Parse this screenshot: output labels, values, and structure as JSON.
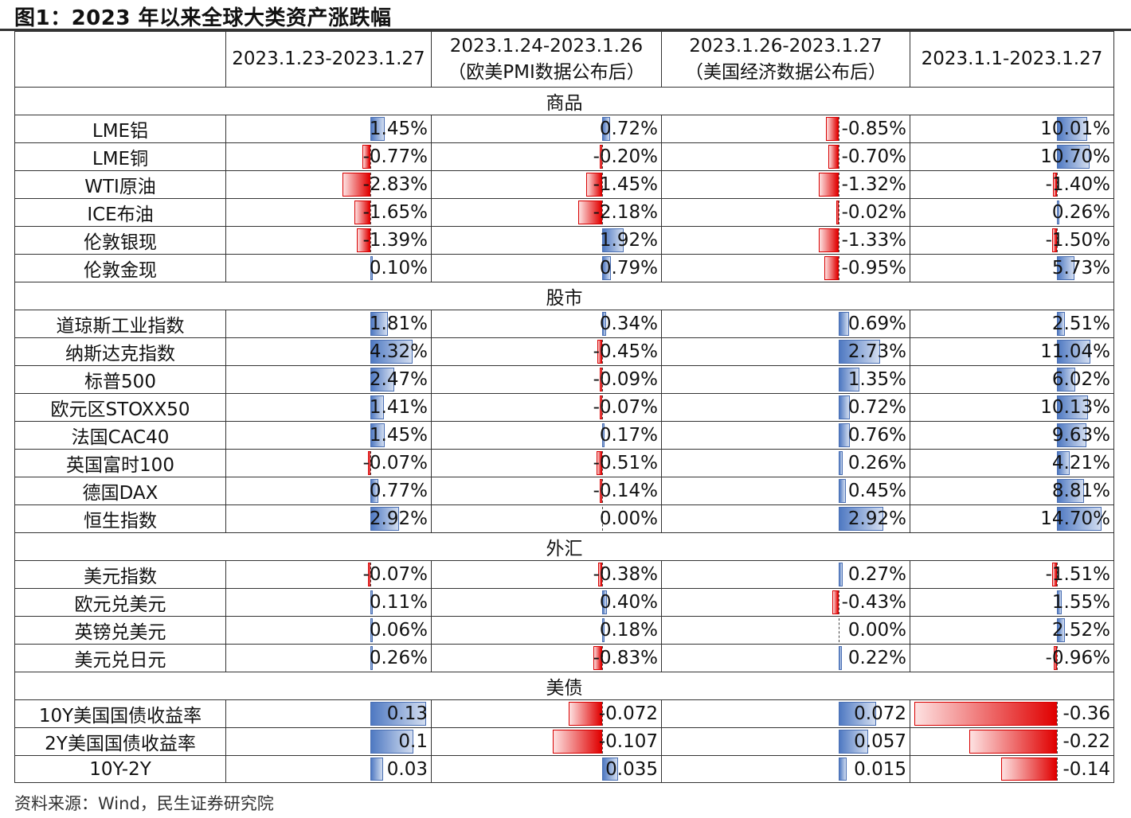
{
  "title": "图1：2023 年以来全球大类资产涨跌幅",
  "source": "资料来源：Wind，民生证券研究院",
  "colors": {
    "positive_bar": "#4f79c2",
    "negative_bar": "#e00000"
  },
  "columns": [
    {
      "line1": "2023.1.23-2023.1.27",
      "line2": ""
    },
    {
      "line1": "2023.1.24-2023.1.26",
      "line2": "（欧美PMI数据公布后）"
    },
    {
      "line1": "2023.1.26-2023.1.27",
      "line2": "（美国经济数据公布后）"
    },
    {
      "line1": "2023.1.1-2023.1.27",
      "line2": ""
    }
  ],
  "sections": [
    {
      "name": "商品",
      "rows": [
        {
          "label": "LME铝",
          "values": [
            1.45,
            0.72,
            -0.85,
            10.01
          ],
          "display": [
            "1.45%",
            "0.72%",
            "-0.85%",
            "10.01%"
          ]
        },
        {
          "label": "LME铜",
          "values": [
            -0.77,
            -0.2,
            -0.7,
            10.7
          ],
          "display": [
            "-0.77%",
            "-0.20%",
            "-0.70%",
            "10.70%"
          ]
        },
        {
          "label": "WTI原油",
          "values": [
            -2.83,
            -1.45,
            -1.32,
            -1.4
          ],
          "display": [
            "-2.83%",
            "-1.45%",
            "-1.32%",
            "-1.40%"
          ]
        },
        {
          "label": "ICE布油",
          "values": [
            -1.65,
            -2.18,
            -0.02,
            0.26
          ],
          "display": [
            "-1.65%",
            "-2.18%",
            "-0.02%",
            "0.26%"
          ]
        },
        {
          "label": "伦敦银现",
          "values": [
            -1.39,
            1.92,
            -1.33,
            -1.5
          ],
          "display": [
            "-1.39%",
            "1.92%",
            "-1.33%",
            "-1.50%"
          ]
        },
        {
          "label": "伦敦金现",
          "values": [
            0.1,
            0.79,
            -0.95,
            5.73
          ],
          "display": [
            "0.10%",
            "0.79%",
            "-0.95%",
            "5.73%"
          ]
        }
      ]
    },
    {
      "name": "股市",
      "rows": [
        {
          "label": "道琼斯工业指数",
          "values": [
            1.81,
            0.34,
            0.69,
            2.51
          ],
          "display": [
            "1.81%",
            "0.34%",
            "0.69%",
            "2.51%"
          ]
        },
        {
          "label": "纳斯达克指数",
          "values": [
            4.32,
            -0.45,
            2.73,
            11.04
          ],
          "display": [
            "4.32%",
            "-0.45%",
            "2.73%",
            "11.04%"
          ]
        },
        {
          "label": "标普500",
          "values": [
            2.47,
            -0.09,
            1.35,
            6.02
          ],
          "display": [
            "2.47%",
            "-0.09%",
            "1.35%",
            "6.02%"
          ]
        },
        {
          "label": "欧元区STOXX50",
          "values": [
            1.41,
            -0.07,
            0.72,
            10.13
          ],
          "display": [
            "1.41%",
            "-0.07%",
            "0.72%",
            "10.13%"
          ]
        },
        {
          "label": "法国CAC40",
          "values": [
            1.45,
            0.17,
            0.76,
            9.63
          ],
          "display": [
            "1.45%",
            "0.17%",
            "0.76%",
            "9.63%"
          ]
        },
        {
          "label": "英国富时100",
          "values": [
            -0.07,
            -0.51,
            0.26,
            4.21
          ],
          "display": [
            "-0.07%",
            "-0.51%",
            "0.26%",
            "4.21%"
          ]
        },
        {
          "label": "德国DAX",
          "values": [
            0.77,
            -0.14,
            0.45,
            8.81
          ],
          "display": [
            "0.77%",
            "-0.14%",
            "0.45%",
            "8.81%"
          ]
        },
        {
          "label": "恒生指数",
          "values": [
            2.92,
            0.0,
            2.92,
            14.7
          ],
          "display": [
            "2.92%",
            "0.00%",
            "2.92%",
            "14.70%"
          ]
        }
      ]
    },
    {
      "name": "外汇",
      "rows": [
        {
          "label": "美元指数",
          "values": [
            -0.07,
            -0.38,
            0.27,
            -1.51
          ],
          "display": [
            "-0.07%",
            "-0.38%",
            "0.27%",
            "-1.51%"
          ]
        },
        {
          "label": "欧元兑美元",
          "values": [
            0.11,
            0.4,
            -0.43,
            1.55
          ],
          "display": [
            "0.11%",
            "0.40%",
            "-0.43%",
            "1.55%"
          ]
        },
        {
          "label": "英镑兑美元",
          "values": [
            0.06,
            0.18,
            0.0,
            2.52
          ],
          "display": [
            "0.06%",
            "0.18%",
            "0.00%",
            "2.52%"
          ]
        },
        {
          "label": "美元兑日元",
          "values": [
            0.26,
            -0.83,
            0.22,
            -0.96
          ],
          "display": [
            "0.26%",
            "-0.83%",
            "0.22%",
            "-0.96%"
          ]
        }
      ]
    },
    {
      "name": "美债",
      "rows": [
        {
          "label": "10Y美国国债收益率",
          "values": [
            0.13,
            -0.072,
            0.072,
            -0.36
          ],
          "display": [
            "0.13",
            "-0.072",
            "0.072",
            "-0.36"
          ]
        },
        {
          "label": "2Y美国国债收益率",
          "values": [
            0.1,
            -0.107,
            0.057,
            -0.22
          ],
          "display": [
            "0.1",
            "-0.107",
            "0.057",
            "-0.22"
          ]
        },
        {
          "label": "10Y-2Y",
          "values": [
            0.03,
            0.035,
            0.015,
            -0.14
          ],
          "display": [
            "0.03",
            "0.035",
            "0.015",
            "-0.14"
          ]
        }
      ]
    }
  ]
}
